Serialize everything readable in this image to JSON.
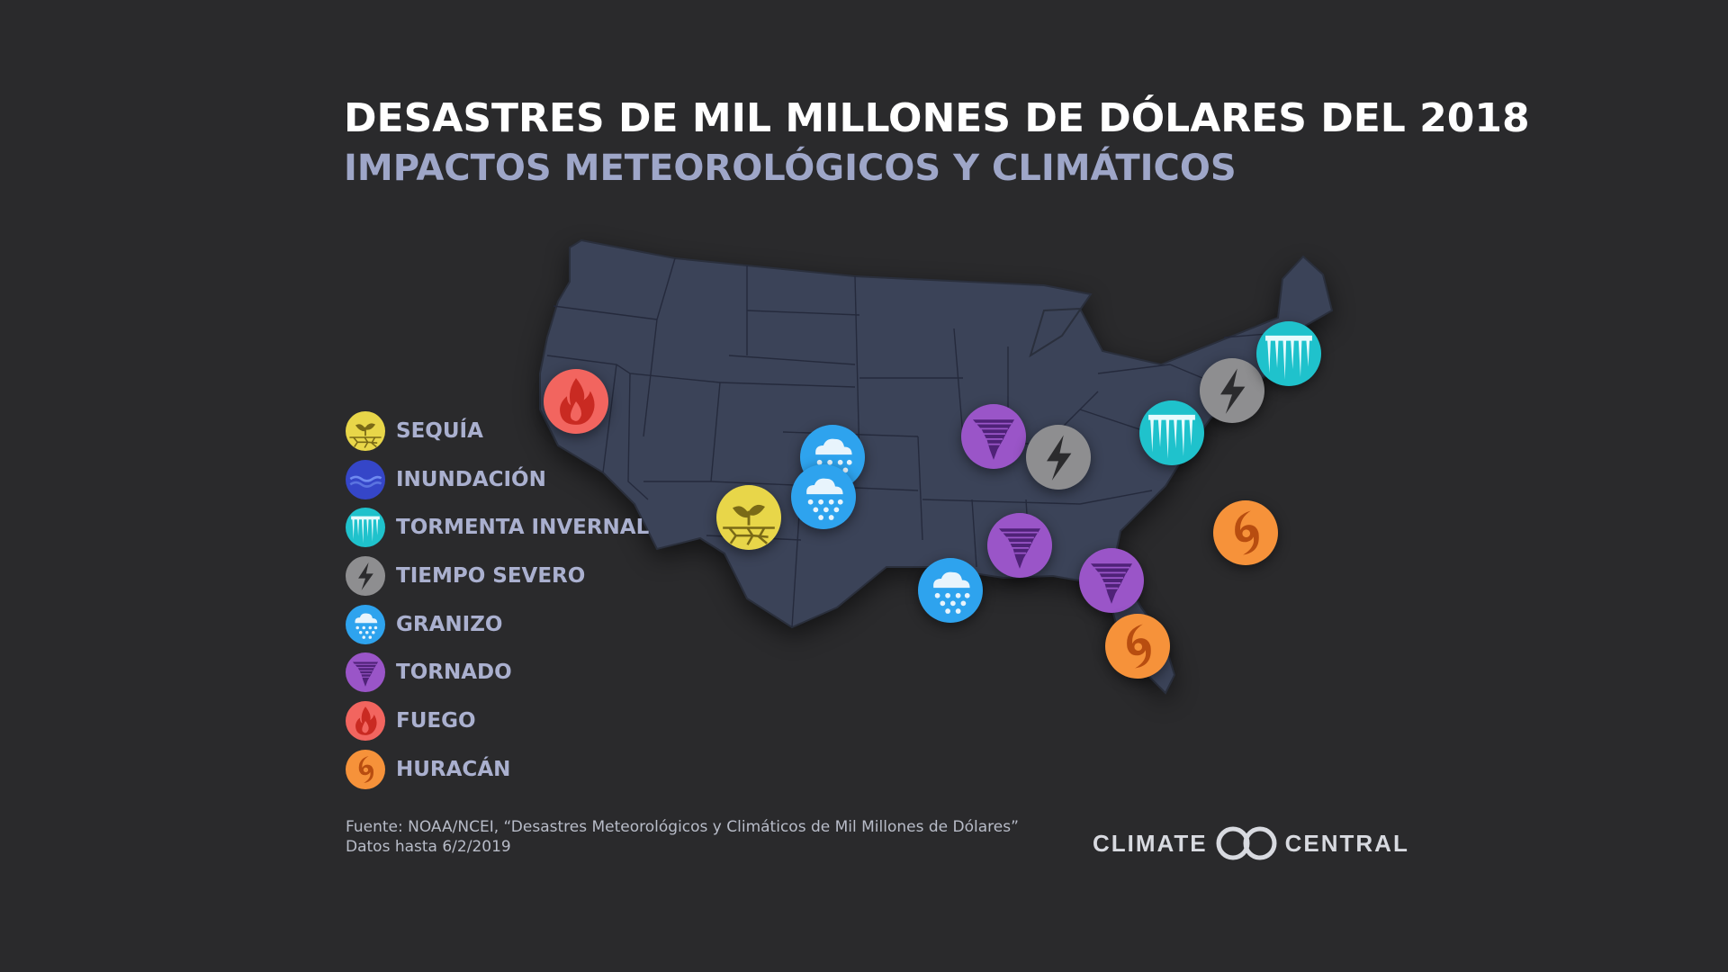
{
  "header": {
    "title": "DESASTRES DE MIL MILLONES DE DÓLARES DEL 2018",
    "subtitle": "IMPACTOS METEOROLÓGICOS Y CLIMÁTICOS"
  },
  "colors": {
    "drought": "#e8d649",
    "flood": "#3546c8",
    "winter_storm": "#1fc2cc",
    "severe_weather": "#8e8e90",
    "hail": "#2ea3ee",
    "tornado": "#9a55c8",
    "fire": "#f2655f",
    "hurricane": "#f6923a",
    "map_fill": "#3b4358"
  },
  "legend": [
    {
      "type": "drought",
      "label": "SEQUÍA",
      "icon": "drought-icon"
    },
    {
      "type": "flood",
      "label": "INUNDACIÓN",
      "icon": "flood-icon"
    },
    {
      "type": "winter_storm",
      "label": "TORMENTA INVERNAL",
      "icon": "winter-storm-icon"
    },
    {
      "type": "severe_weather",
      "label": "TIEMPO SEVERO",
      "icon": "lightning-icon"
    },
    {
      "type": "hail",
      "label": "GRANIZO",
      "icon": "hail-icon"
    },
    {
      "type": "tornado",
      "label": "TORNADO",
      "icon": "tornado-icon"
    },
    {
      "type": "fire",
      "label": "FUEGO",
      "icon": "fire-icon"
    },
    {
      "type": "hurricane",
      "label": "HURACÁN",
      "icon": "hurricane-icon"
    }
  ],
  "events": [
    {
      "type": "fire",
      "region": "california"
    },
    {
      "type": "hail",
      "region": "colorado"
    },
    {
      "type": "hail",
      "region": "colorado-south"
    },
    {
      "type": "drought",
      "region": "southwest"
    },
    {
      "type": "hail",
      "region": "texas-north"
    },
    {
      "type": "tornado",
      "region": "midwest"
    },
    {
      "type": "severe_weather",
      "region": "illinois"
    },
    {
      "type": "tornado",
      "region": "arkansas-tennessee"
    },
    {
      "type": "tornado",
      "region": "alabama"
    },
    {
      "type": "hurricane",
      "region": "florida-panhandle"
    },
    {
      "type": "hurricane",
      "region": "carolinas"
    },
    {
      "type": "winter_storm",
      "region": "ohio-pennsylvania"
    },
    {
      "type": "severe_weather",
      "region": "new-york"
    },
    {
      "type": "winter_storm",
      "region": "new-england"
    }
  ],
  "footer": {
    "source_line1": "Fuente: NOAA/NCEI, “Desastres Meteorológicos y Climáticos de Mil Millones de Dólares”",
    "source_line2": "Datos hasta 6/2/2019",
    "logo_left": "CLIMATE",
    "logo_right": "CENTRAL"
  }
}
